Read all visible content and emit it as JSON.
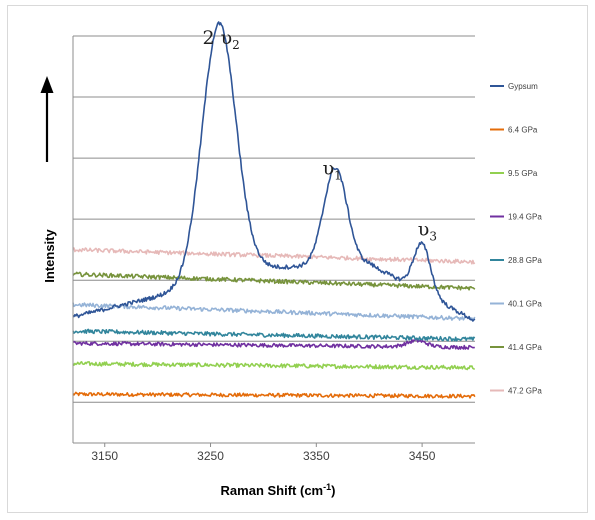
{
  "chart_data": {
    "type": "line",
    "xlabel": "Raman Shift (cm",
    "xlabel_sup": "-1",
    "xlabel_close": ")",
    "ylabel": "Intensity",
    "xlim": [
      3120,
      3500
    ],
    "ylim": [
      0,
      100
    ],
    "x_ticks": [
      3150,
      3250,
      3350,
      3450
    ],
    "y_gridlines": [
      10,
      25,
      40,
      55,
      70,
      85,
      100
    ],
    "grid": true,
    "legend_position": "right",
    "annotations": [
      {
        "text": "2 υ",
        "sub": "2",
        "x": 3260,
        "y": 98
      },
      {
        "text": "υ",
        "sub": "1",
        "x": 3365,
        "y": 66
      },
      {
        "text": "υ",
        "sub": "3",
        "x": 3455,
        "y": 51
      }
    ],
    "series": [
      {
        "name": "Gypsum",
        "color": "#2f5597",
        "base": [
          [
            3120,
            31
          ],
          [
            3200,
            36
          ],
          [
            3300,
            43
          ],
          [
            3400,
            44
          ],
          [
            3500,
            30
          ]
        ],
        "peaks": [
          {
            "center": 3258,
            "height": 63,
            "width": 16
          },
          {
            "center": 3368,
            "height": 24,
            "width": 11
          },
          {
            "center": 3450,
            "height": 12,
            "width": 8
          }
        ],
        "noise": 0.5
      },
      {
        "name": "6.4 GPa",
        "color": "#e46c0a",
        "base": [
          [
            3120,
            12
          ],
          [
            3500,
            11.5
          ]
        ],
        "peaks": [],
        "noise": 0.45
      },
      {
        "name": "9.5 GPa",
        "color": "#92d050",
        "base": [
          [
            3120,
            19.5
          ],
          [
            3500,
            18.5
          ]
        ],
        "peaks": [],
        "noise": 0.5
      },
      {
        "name": "19.4 GPa",
        "color": "#7030a0",
        "base": [
          [
            3120,
            24.5
          ],
          [
            3500,
            23.5
          ]
        ],
        "peaks": [
          {
            "center": 3445,
            "height": 1.5,
            "width": 9
          }
        ],
        "noise": 0.45
      },
      {
        "name": "28.8 GPa",
        "color": "#31859c",
        "base": [
          [
            3120,
            27.5
          ],
          [
            3500,
            25.5
          ]
        ],
        "peaks": [],
        "noise": 0.5
      },
      {
        "name": "40.1 GPa",
        "color": "#95b3d7",
        "base": [
          [
            3120,
            34
          ],
          [
            3500,
            30.5
          ]
        ],
        "peaks": [],
        "noise": 0.5
      },
      {
        "name": "41.4 GPa",
        "color": "#77933c",
        "base": [
          [
            3120,
            41.5
          ],
          [
            3500,
            38
          ]
        ],
        "peaks": [],
        "noise": 0.5
      },
      {
        "name": "47.2 GPa",
        "color": "#e6b9b8",
        "base": [
          [
            3120,
            47.5
          ],
          [
            3500,
            44.5
          ]
        ],
        "peaks": [],
        "noise": 0.5
      }
    ]
  },
  "colors": {
    "gridline": "#8c8c8c",
    "axis": "#8c8c8c",
    "arrow": "#000000"
  }
}
